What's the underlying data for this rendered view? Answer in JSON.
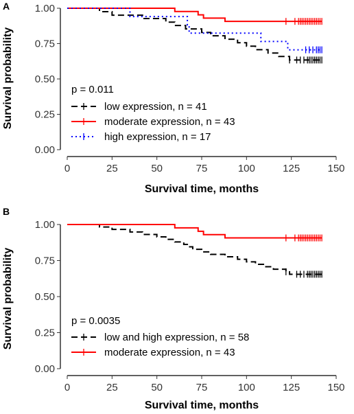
{
  "chart_data": [
    {
      "type": "line",
      "panel_label": "A",
      "xlabel": "Survival time, months",
      "ylabel": "Survival probability",
      "xlim": [
        0,
        150
      ],
      "ylim": [
        0,
        1
      ],
      "x_ticks": [
        0,
        25,
        50,
        75,
        100,
        125,
        150
      ],
      "y_ticks": [
        "0.00",
        "0.25",
        "0.50",
        "0.75",
        "1.00"
      ],
      "grid": false,
      "legend_position": "bottom-left",
      "annotation": "p = 0.011",
      "series": [
        {
          "name": "low expression, n = 41",
          "color": "#000000",
          "linestyle": "dashed",
          "steps": [
            [
              0,
              1.0
            ],
            [
              18,
              0.976
            ],
            [
              25,
              0.951
            ],
            [
              42,
              0.927
            ],
            [
              55,
              0.902
            ],
            [
              60,
              0.878
            ],
            [
              66,
              0.854
            ],
            [
              75,
              0.829
            ],
            [
              80,
              0.805
            ],
            [
              88,
              0.781
            ],
            [
              95,
              0.756
            ],
            [
              100,
              0.732
            ],
            [
              105,
              0.707
            ],
            [
              112,
              0.683
            ],
            [
              118,
              0.659
            ],
            [
              124,
              0.634
            ]
          ],
          "censored": [
            124,
            128,
            130,
            132,
            134,
            135,
            136,
            137,
            138,
            139,
            140,
            141,
            142
          ]
        },
        {
          "name": "moderate expression, n = 43",
          "color": "#ff0000",
          "linestyle": "solid",
          "steps": [
            [
              0,
              1.0
            ],
            [
              60,
              0.977
            ],
            [
              73,
              0.953
            ],
            [
              76,
              0.93
            ],
            [
              88,
              0.907
            ]
          ],
          "censored": [
            122,
            127,
            129,
            130,
            131,
            132,
            133,
            134,
            135,
            136,
            137,
            138,
            139,
            140,
            141,
            142
          ]
        },
        {
          "name": "high expression, n = 17",
          "color": "#0000ff",
          "linestyle": "dotted",
          "steps": [
            [
              0,
              1.0
            ],
            [
              35,
              0.941
            ],
            [
              67,
              0.882
            ],
            [
              68,
              0.824
            ],
            [
              108,
              0.765
            ],
            [
              123,
              0.706
            ]
          ],
          "censored": [
            133,
            135,
            137,
            139,
            140,
            141,
            142
          ]
        }
      ]
    },
    {
      "type": "line",
      "panel_label": "B",
      "xlabel": "Survival time, months",
      "ylabel": "Survival probability",
      "xlim": [
        0,
        150
      ],
      "ylim": [
        0,
        1
      ],
      "x_ticks": [
        0,
        25,
        50,
        75,
        100,
        125,
        150
      ],
      "y_ticks": [
        "0.00",
        "0.25",
        "0.50",
        "0.75",
        "1.00"
      ],
      "grid": false,
      "legend_position": "bottom-left",
      "annotation": "p = 0.0035",
      "series": [
        {
          "name": "low and high expression, n = 58",
          "color": "#000000",
          "linestyle": "dashed",
          "steps": [
            [
              0,
              1.0
            ],
            [
              18,
              0.983
            ],
            [
              25,
              0.966
            ],
            [
              35,
              0.948
            ],
            [
              42,
              0.931
            ],
            [
              50,
              0.914
            ],
            [
              55,
              0.897
            ],
            [
              60,
              0.879
            ],
            [
              65,
              0.862
            ],
            [
              67,
              0.845
            ],
            [
              70,
              0.828
            ],
            [
              75,
              0.81
            ],
            [
              80,
              0.793
            ],
            [
              88,
              0.776
            ],
            [
              95,
              0.759
            ],
            [
              100,
              0.741
            ],
            [
              105,
              0.724
            ],
            [
              110,
              0.707
            ],
            [
              115,
              0.69
            ],
            [
              122,
              0.672
            ],
            [
              124,
              0.655
            ]
          ],
          "censored": [
            122,
            128,
            130,
            132,
            134,
            135,
            136,
            137,
            138,
            139,
            140,
            141,
            142
          ]
        },
        {
          "name": "moderate expression, n = 43",
          "color": "#ff0000",
          "linestyle": "solid",
          "steps": [
            [
              0,
              1.0
            ],
            [
              60,
              0.977
            ],
            [
              73,
              0.953
            ],
            [
              76,
              0.93
            ],
            [
              88,
              0.907
            ]
          ],
          "censored": [
            122,
            127,
            129,
            130,
            131,
            132,
            133,
            134,
            135,
            136,
            137,
            138,
            139,
            140,
            141,
            142
          ]
        }
      ]
    }
  ]
}
